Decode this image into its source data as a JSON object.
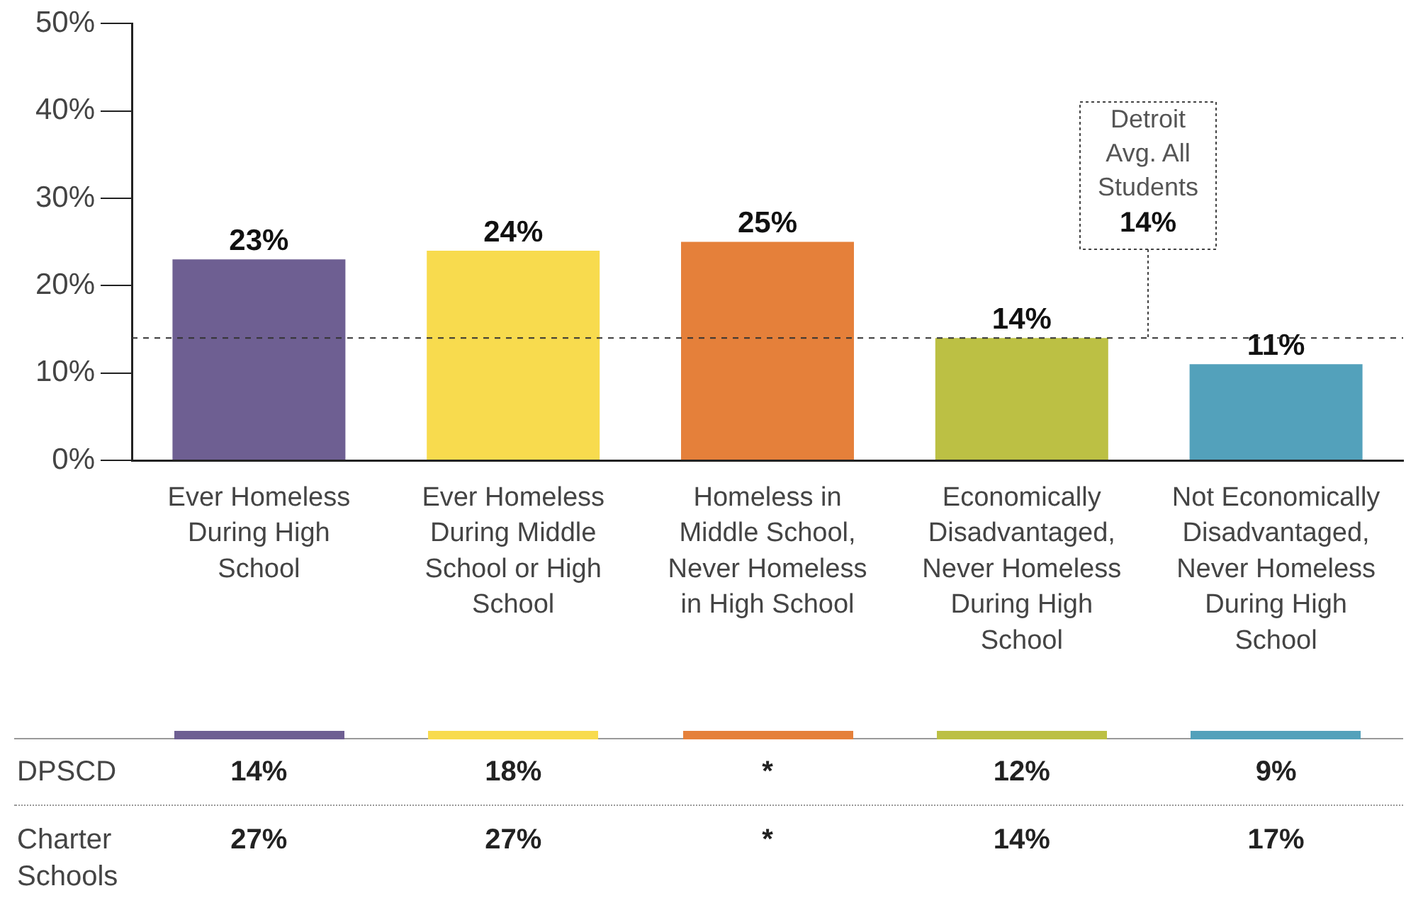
{
  "chart_data": {
    "type": "bar",
    "categories": [
      "Ever Homeless During High School",
      "Ever Homeless During Middle School or High School",
      "Homeless in Middle School, Never Homeless in High School",
      "Economically Disadvantaged, Never Homeless During High School",
      "Not Economically Disadvantaged, Never Homeless During High School"
    ],
    "values": [
      23,
      24,
      25,
      14,
      11
    ],
    "colors": [
      "#6e5f92",
      "#f8db4e",
      "#e5803a",
      "#bcc044",
      "#53a1bb"
    ],
    "value_labels": [
      "23%",
      "24%",
      "25%",
      "14%",
      "11%"
    ],
    "ylim": [
      0,
      50
    ],
    "yticks": [
      {
        "value": 0,
        "label": "0%"
      },
      {
        "value": 10,
        "label": "10%"
      },
      {
        "value": 20,
        "label": "20%"
      },
      {
        "value": 30,
        "label": "30%"
      },
      {
        "value": 40,
        "label": "40%"
      },
      {
        "value": 50,
        "label": "50%"
      }
    ],
    "ref_lines": [
      {
        "axis": "y",
        "value": 14,
        "label": "Detroit Avg. All Students 14%",
        "line_style": "dashed"
      }
    ],
    "annotations": [
      "DPSCD",
      "14%",
      "18%",
      "*",
      "12%",
      "9%",
      "Charter Schools",
      "27%",
      "27%",
      "*",
      "14%",
      "17%"
    ],
    "grid": false,
    "legend": false
  }
}
